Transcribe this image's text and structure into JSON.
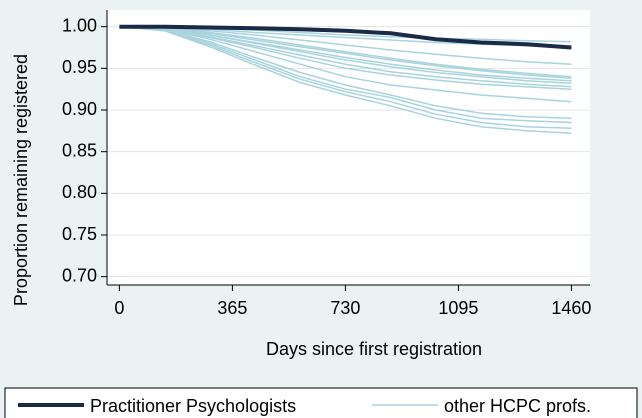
{
  "chart_data": {
    "type": "line",
    "x_label": "Days since first registration",
    "y_label": "Proportion remaining registered",
    "x": [
      0,
      146,
      292,
      438,
      584,
      730,
      876,
      1022,
      1168,
      1314,
      1460
    ],
    "xlim": [
      -40,
      1520
    ],
    "xticks": [
      0,
      365,
      730,
      1095,
      1460
    ],
    "ylim": [
      0.69,
      1.02
    ],
    "yticks": [
      {
        "value": 0.7,
        "label": "0.70"
      },
      0.75,
      {
        "value": 0.8,
        "label": "0.80"
      },
      0.85,
      {
        "value": 0.9,
        "label": "0.90"
      },
      0.95,
      {
        "value": 1,
        "label": "1.00"
      }
    ],
    "grid": true,
    "series": [
      {
        "name": "Practitioner Psychologists",
        "color": "#1a2a47",
        "values": [
          1,
          1,
          0.999,
          0.998,
          0.997,
          0.995,
          0.992,
          0.985,
          0.981,
          0.979,
          0.975
        ]
      },
      {
        "name": "other HCPC profs.",
        "color": "#a8d3df",
        "lines": [
          {
            "values": [
              1,
              1,
              0.998,
              0.996,
              0.993,
              0.99,
              0.988,
              0.986,
              0.985,
              0.983,
              0.982
            ]
          },
          {
            "values": [
              1,
              1,
              0.997,
              0.993,
              0.99,
              0.987,
              0.984,
              0.981,
              0.979,
              0.977,
              0.975
            ]
          },
          {
            "values": [
              1,
              0.999,
              0.995,
              0.99,
              0.984,
              0.978,
              0.972,
              0.967,
              0.962,
              0.958,
              0.955
            ]
          },
          {
            "values": [
              1,
              0.999,
              0.993,
              0.986,
              0.978,
              0.97,
              0.962,
              0.955,
              0.949,
              0.944,
              0.94
            ]
          },
          {
            "values": [
              1,
              0.998,
              0.992,
              0.984,
              0.976,
              0.968,
              0.96,
              0.953,
              0.947,
              0.942,
              0.938
            ]
          },
          {
            "values": [
              1,
              0.998,
              0.99,
              0.981,
              0.972,
              0.963,
              0.955,
              0.948,
              0.942,
              0.938,
              0.935
            ]
          },
          {
            "values": [
              1,
              0.998,
              0.99,
              0.98,
              0.97,
              0.96,
              0.952,
              0.945,
              0.94,
              0.935,
              0.932
            ]
          },
          {
            "values": [
              1,
              0.997,
              0.988,
              0.977,
              0.966,
              0.955,
              0.946,
              0.94,
              0.935,
              0.931,
              0.928
            ]
          },
          {
            "values": [
              1,
              0.997,
              0.987,
              0.975,
              0.962,
              0.95,
              0.942,
              0.936,
              0.931,
              0.928,
              0.925
            ]
          },
          {
            "values": [
              1,
              0.997,
              0.985,
              0.97,
              0.955,
              0.94,
              0.93,
              0.924,
              0.918,
              0.914,
              0.91
            ]
          },
          {
            "values": [
              1,
              0.996,
              0.982,
              0.963,
              0.945,
              0.93,
              0.918,
              0.905,
              0.896,
              0.892,
              0.89
            ]
          },
          {
            "values": [
              1,
              0.996,
              0.98,
              0.96,
              0.94,
              0.925,
              0.915,
              0.9,
              0.89,
              0.887,
              0.885
            ]
          },
          {
            "values": [
              1,
              0.995,
              0.978,
              0.957,
              0.937,
              0.922,
              0.91,
              0.895,
              0.885,
              0.88,
              0.878
            ]
          },
          {
            "values": [
              1,
              0.995,
              0.976,
              0.954,
              0.933,
              0.918,
              0.905,
              0.89,
              0.88,
              0.875,
              0.872
            ]
          }
        ]
      }
    ]
  }
}
